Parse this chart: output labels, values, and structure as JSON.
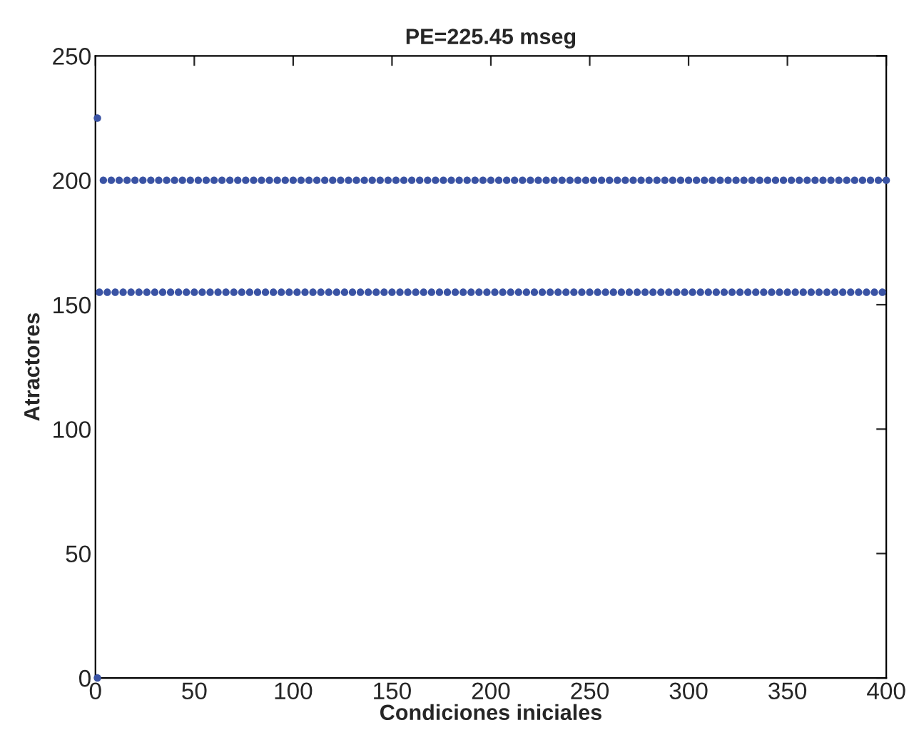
{
  "chart_data": {
    "type": "scatter",
    "title": "PE=225.45 mseg",
    "xlabel": "Condiciones iniciales",
    "ylabel": "Atractores",
    "xlim": [
      0,
      400
    ],
    "ylim": [
      0,
      250
    ],
    "xticks": [
      0,
      50,
      100,
      150,
      200,
      250,
      300,
      350,
      400
    ],
    "yticks": [
      0,
      50,
      100,
      150,
      200,
      250
    ],
    "grid": false,
    "marker": "circle",
    "series": [
      {
        "color": "#3a53a4",
        "x": [
          1,
          1
        ],
        "values": [
          225,
          0
        ]
      },
      {
        "color": "#3a53a4",
        "x": [
          4,
          8,
          12,
          16,
          20,
          24,
          28,
          32,
          36,
          40,
          44,
          48,
          52,
          56,
          60,
          64,
          68,
          72,
          76,
          80,
          84,
          88,
          92,
          96,
          100,
          104,
          108,
          112,
          116,
          120,
          124,
          128,
          132,
          136,
          140,
          144,
          148,
          152,
          156,
          160,
          164,
          168,
          172,
          176,
          180,
          184,
          188,
          192,
          196,
          200,
          204,
          208,
          212,
          216,
          220,
          224,
          228,
          232,
          236,
          240,
          244,
          248,
          252,
          256,
          260,
          264,
          268,
          272,
          276,
          280,
          284,
          288,
          292,
          296,
          300,
          304,
          308,
          312,
          316,
          320,
          324,
          328,
          332,
          336,
          340,
          344,
          348,
          352,
          356,
          360,
          364,
          368,
          372,
          376,
          380,
          384,
          388,
          392,
          396,
          400
        ],
        "values": [
          200,
          200,
          200,
          200,
          200,
          200,
          200,
          200,
          200,
          200,
          200,
          200,
          200,
          200,
          200,
          200,
          200,
          200,
          200,
          200,
          200,
          200,
          200,
          200,
          200,
          200,
          200,
          200,
          200,
          200,
          200,
          200,
          200,
          200,
          200,
          200,
          200,
          200,
          200,
          200,
          200,
          200,
          200,
          200,
          200,
          200,
          200,
          200,
          200,
          200,
          200,
          200,
          200,
          200,
          200,
          200,
          200,
          200,
          200,
          200,
          200,
          200,
          200,
          200,
          200,
          200,
          200,
          200,
          200,
          200,
          200,
          200,
          200,
          200,
          200,
          200,
          200,
          200,
          200,
          200,
          200,
          200,
          200,
          200,
          200,
          200,
          200,
          200,
          200,
          200,
          200,
          200,
          200,
          200,
          200,
          200,
          200,
          200,
          200,
          200
        ]
      },
      {
        "color": "#3a53a4",
        "x": [
          2,
          6,
          10,
          14,
          18,
          22,
          26,
          30,
          34,
          38,
          42,
          46,
          50,
          54,
          58,
          62,
          66,
          70,
          74,
          78,
          82,
          86,
          90,
          94,
          98,
          102,
          106,
          110,
          114,
          118,
          122,
          126,
          130,
          134,
          138,
          142,
          146,
          150,
          154,
          158,
          162,
          166,
          170,
          174,
          178,
          182,
          186,
          190,
          194,
          198,
          202,
          206,
          210,
          214,
          218,
          222,
          226,
          230,
          234,
          238,
          242,
          246,
          250,
          254,
          258,
          262,
          266,
          270,
          274,
          278,
          282,
          286,
          290,
          294,
          298,
          302,
          306,
          310,
          314,
          318,
          322,
          326,
          330,
          334,
          338,
          342,
          346,
          350,
          354,
          358,
          362,
          366,
          370,
          374,
          378,
          382,
          386,
          390,
          394,
          398
        ],
        "values": [
          155,
          155,
          155,
          155,
          155,
          155,
          155,
          155,
          155,
          155,
          155,
          155,
          155,
          155,
          155,
          155,
          155,
          155,
          155,
          155,
          155,
          155,
          155,
          155,
          155,
          155,
          155,
          155,
          155,
          155,
          155,
          155,
          155,
          155,
          155,
          155,
          155,
          155,
          155,
          155,
          155,
          155,
          155,
          155,
          155,
          155,
          155,
          155,
          155,
          155,
          155,
          155,
          155,
          155,
          155,
          155,
          155,
          155,
          155,
          155,
          155,
          155,
          155,
          155,
          155,
          155,
          155,
          155,
          155,
          155,
          155,
          155,
          155,
          155,
          155,
          155,
          155,
          155,
          155,
          155,
          155,
          155,
          155,
          155,
          155,
          155,
          155,
          155,
          155,
          155,
          155,
          155,
          155,
          155,
          155,
          155,
          155,
          155,
          155,
          155
        ]
      }
    ]
  }
}
